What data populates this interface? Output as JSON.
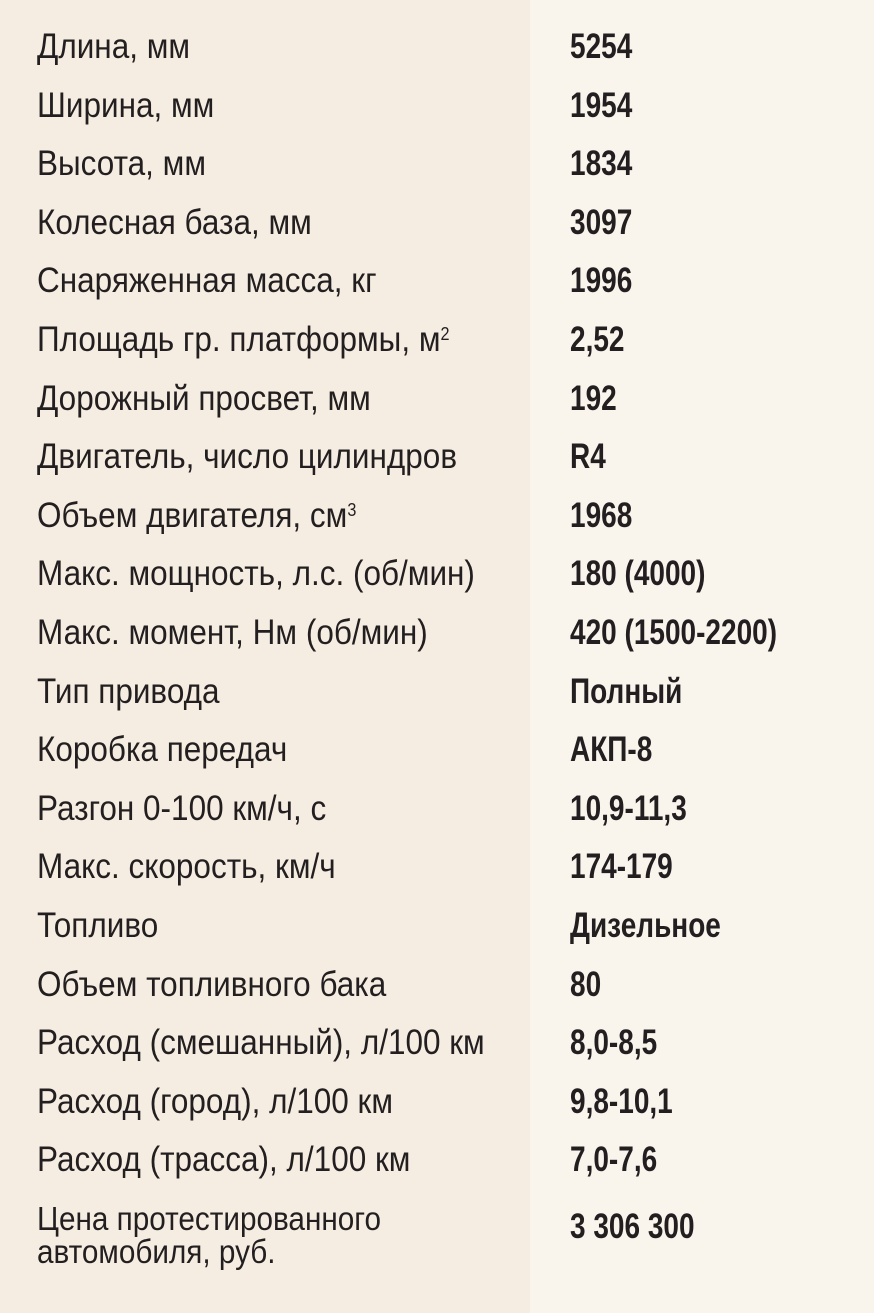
{
  "specs": [
    {
      "label": "Длина, мм",
      "value": "5254"
    },
    {
      "label": "Ширина, мм",
      "value": "1954"
    },
    {
      "label": "Высота, мм",
      "value": "1834"
    },
    {
      "label": "Колесная база, мм",
      "value": "3097"
    },
    {
      "label": "Снаряженная масса, кг",
      "value": "1996"
    },
    {
      "label": "Площадь гр. платформы, м",
      "sup": "2",
      "value": "2,52"
    },
    {
      "label": "Дорожный просвет, мм",
      "value": "192"
    },
    {
      "label": "Двигатель, число цилиндров",
      "value": "R4"
    },
    {
      "label": "Объем двигателя, см",
      "sup": "3",
      "value": "1968"
    },
    {
      "label": "Макс. мощность, л.с. (об/мин)",
      "value": "180 (4000)"
    },
    {
      "label": "Макс. момент, Нм (об/мин)",
      "value": "420 (1500-2200)"
    },
    {
      "label": "Тип привода",
      "value": "Полный"
    },
    {
      "label": "Коробка передач",
      "value": "АКП-8"
    },
    {
      "label": "Разгон 0-100 км/ч, с",
      "value": "10,9-11,3"
    },
    {
      "label": "Макс. скорость, км/ч",
      "value": "174-179"
    },
    {
      "label": "Топливо",
      "value": "Дизельное"
    },
    {
      "label": "Объем топливного бака",
      "value": "80"
    },
    {
      "label": "Расход (смешанный), л/100 км",
      "value": "8,0-8,5"
    },
    {
      "label": "Расход (город), л/100 км",
      "value": "9,8-10,1"
    },
    {
      "label": "Расход (трасса), л/100 км",
      "value": "7,0-7,6"
    }
  ],
  "price": {
    "label_line1": "Цена протестированного",
    "label_line2": "автомобиля, руб.",
    "value": "3 306 300"
  }
}
